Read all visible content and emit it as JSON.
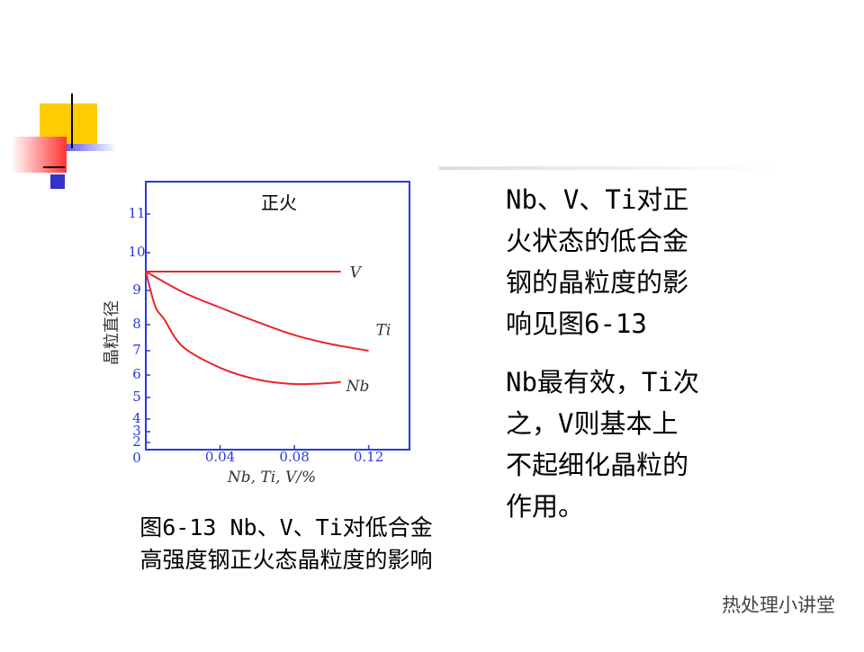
{
  "chart_data": {
    "type": "line",
    "title": "正火",
    "xlabel": "Nb, Ti, V/%",
    "ylabel": "晶粒直径",
    "xlim": [
      0,
      0.142
    ],
    "xticks": [
      0.04,
      0.08,
      0.12
    ],
    "ylim": [
      0,
      11.8
    ],
    "yticks": [
      0,
      2,
      3,
      4,
      5,
      6,
      7,
      8,
      9,
      10,
      11
    ],
    "series": [
      {
        "name": "V",
        "color": "#e8262a",
        "x": [
          0,
          0.105
        ],
        "values": [
          9.5,
          9.5
        ]
      },
      {
        "name": "Ti",
        "color": "#e8262a",
        "x": [
          0,
          0.02,
          0.04,
          0.06,
          0.08,
          0.1,
          0.12
        ],
        "values": [
          9.5,
          8.95,
          8.5,
          8.08,
          7.6,
          7.25,
          7.0
        ]
      },
      {
        "name": "Nb",
        "color": "#e8262a",
        "x": [
          0,
          0.005,
          0.01,
          0.02,
          0.04,
          0.06,
          0.08,
          0.1,
          0.105
        ],
        "values": [
          9.5,
          8.55,
          8.15,
          7.15,
          6.3,
          5.8,
          5.6,
          5.65,
          5.7
        ]
      }
    ],
    "axis_color": "#2a3bd6"
  },
  "caption": [
    "图6-13  Nb、V、Ti对低合金",
    "高强度钢正火态晶粒度的影响"
  ],
  "paragraphs": [
    [
      "Nb、V、Ti对正",
      "火状态的低合金",
      "钢的晶粒度的影",
      "响见图6-13"
    ],
    [
      "Nb最有效，Ti次",
      "之，V则基本上",
      "不起细化晶粒的",
      "作用。"
    ]
  ],
  "watermark": "热处理小讲堂"
}
